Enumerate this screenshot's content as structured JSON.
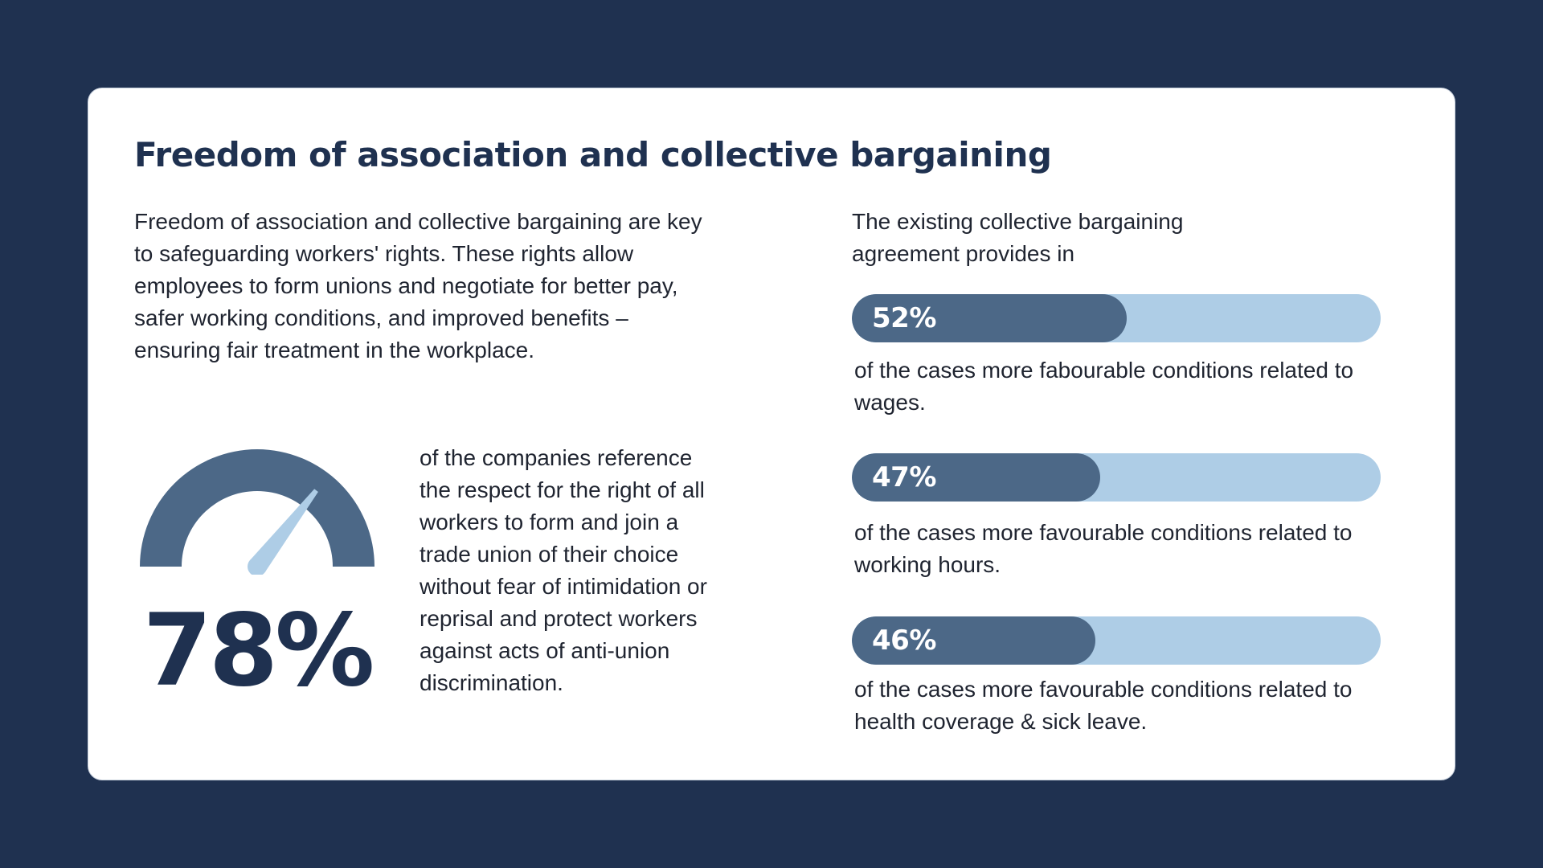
{
  "colors": {
    "background": "#1f3150",
    "card": "#ffffff",
    "bar_fill": "#4c6887",
    "bar_track": "#aecde6",
    "gauge_arc": "#4c6887",
    "gauge_needle": "#aecde6",
    "heading": "#1f3150"
  },
  "title": "Freedom of association and collective bargaining",
  "intro": "Freedom of association and collective bargaining are key to safeguarding workers' rights. These rights allow employees to form unions and negotiate for better pay, safer working conditions, and improved benefits – ensuring fair treatment in the workplace.",
  "gauge": {
    "value": 78,
    "label": "78%",
    "caption": "of the companies reference the respect for the right of all workers to form and join a trade union of their choice without fear of intimidation or reprisal and protect workers against acts of anti-union discrimination."
  },
  "right_intro": "The existing collective bargaining agreement provides in",
  "chart_data": {
    "type": "bar",
    "title": "The existing collective bargaining agreement provides in",
    "unit": "%",
    "ylim": [
      0,
      100
    ],
    "series": [
      {
        "name": "wages",
        "value": 52,
        "label": "52%",
        "caption": "of the cases more fabourable conditions related to wages."
      },
      {
        "name": "working-hours",
        "value": 47,
        "label": "47%",
        "caption": "of the cases more favourable conditions related to working hours."
      },
      {
        "name": "health-coverage",
        "value": 46,
        "label": "46%",
        "caption": "of the cases more favourable conditions related to health coverage & sick leave."
      }
    ]
  }
}
